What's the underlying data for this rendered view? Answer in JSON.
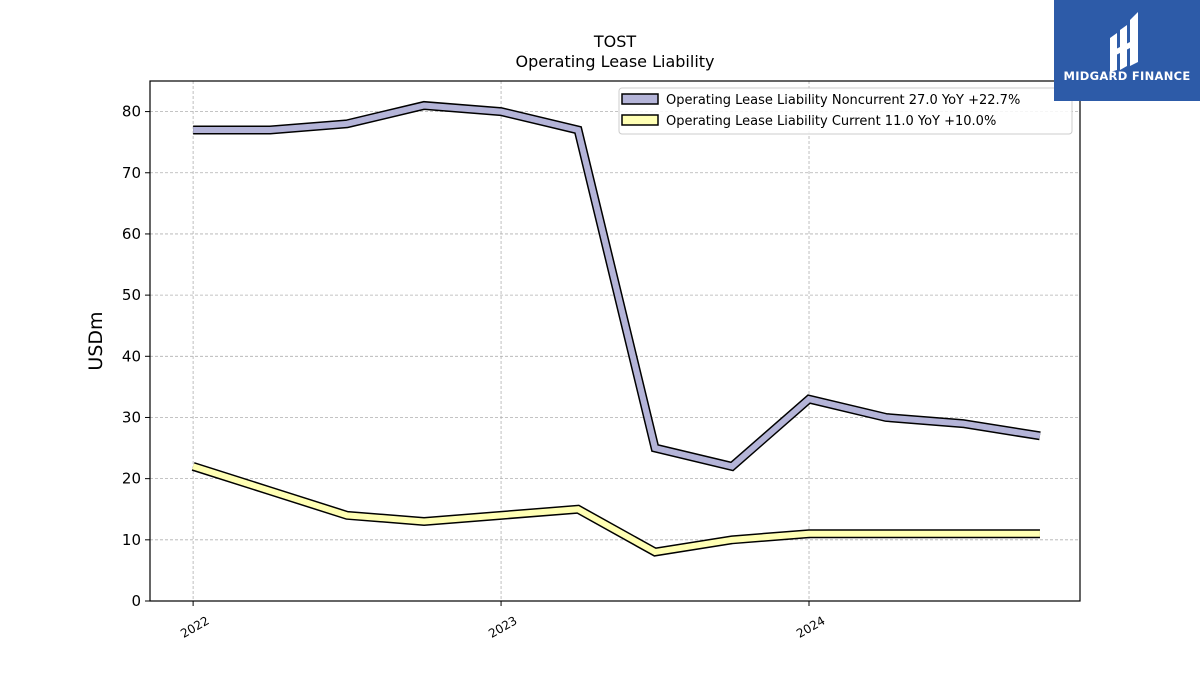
{
  "title": "TOST",
  "subtitle": "Operating Lease Liability",
  "logo_text": "MIDGARD FINANCE",
  "chart_data": {
    "type": "line",
    "title": "TOST",
    "subtitle": "Operating Lease Liability",
    "xlabel": "",
    "ylabel": "USDm",
    "ylim": [
      0,
      85
    ],
    "yticks": [
      0,
      10,
      20,
      30,
      40,
      50,
      60,
      70,
      80
    ],
    "xlim": [
      2021.86,
      2024.88
    ],
    "xticks": [
      {
        "value": 2022.0,
        "label": "2022"
      },
      {
        "value": 2023.0,
        "label": "2023"
      },
      {
        "value": 2024.0,
        "label": "2024"
      }
    ],
    "x": [
      2022.0,
      2022.25,
      2022.5,
      2022.75,
      2023.0,
      2023.25,
      2023.5,
      2023.75,
      2024.0,
      2024.25,
      2024.5,
      2024.75
    ],
    "grid": true,
    "legend_position": "top-right",
    "series": [
      {
        "name": "Operating Lease Liability Noncurrent  27.0 YoY +22.7%",
        "color": "#b4b4d8",
        "values": [
          77.0,
          77.0,
          78.0,
          81.0,
          80.0,
          77.0,
          25.0,
          22.0,
          33.0,
          30.0,
          29.0,
          27.0
        ]
      },
      {
        "name": "Operating Lease Liability Current  11.0 YoY +10.0%",
        "color": "#ffffb4",
        "values": [
          22.0,
          18.0,
          14.0,
          13.0,
          14.0,
          15.0,
          8.0,
          10.0,
          11.0,
          11.0,
          11.0,
          11.0
        ]
      }
    ]
  }
}
